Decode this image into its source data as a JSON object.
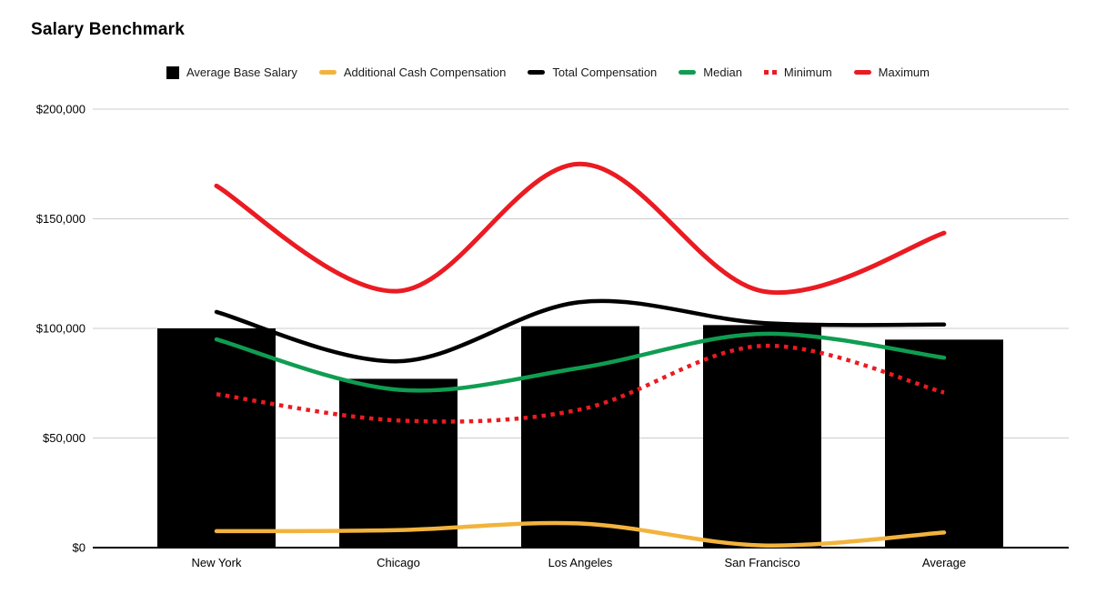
{
  "page": {
    "title": "Salary Benchmark"
  },
  "legend": {
    "items": [
      {
        "label": "Average Base Salary",
        "swatch": "square",
        "color": "#000000"
      },
      {
        "label": "Additional Cash Compensation",
        "swatch": "line",
        "color": "#F2B33D"
      },
      {
        "label": "Total Compensation",
        "swatch": "line",
        "color": "#000000"
      },
      {
        "label": "Median",
        "swatch": "line",
        "color": "#0F9D51"
      },
      {
        "label": "Minimum",
        "swatch": "dots",
        "color": "#EA1B22"
      },
      {
        "label": "Maximum",
        "swatch": "line",
        "color": "#EA1B22"
      }
    ]
  },
  "chart_data": {
    "type": "bar",
    "subtype": "combo bar + smooth lines",
    "title": "Salary Benchmark",
    "categories": [
      "New York",
      "Chicago",
      "Los Angeles",
      "San Francisco",
      "Average"
    ],
    "y_axis": {
      "min": 0,
      "max": 200000,
      "tick_values": [
        0,
        50000,
        100000,
        150000,
        200000
      ],
      "tick_labels": [
        "$0",
        "$50,000",
        "$100,000",
        "$150,000",
        "$200,000"
      ],
      "gridlines": true
    },
    "legend_position": "top",
    "series": [
      {
        "name": "Average Base Salary",
        "type": "bar",
        "style": "solid",
        "color": "#000000",
        "values": [
          100000,
          77000,
          101000,
          101500,
          94875
        ]
      },
      {
        "name": "Additional Cash Compensation",
        "type": "line",
        "style": "solid",
        "color": "#F2B33D",
        "values": [
          7500,
          8000,
          11000,
          1000,
          6875
        ]
      },
      {
        "name": "Total Compensation",
        "type": "line",
        "style": "solid",
        "color": "#000000",
        "values": [
          107500,
          85000,
          112000,
          102500,
          101750
        ]
      },
      {
        "name": "Median",
        "type": "line",
        "style": "solid",
        "color": "#0F9D51",
        "values": [
          95000,
          72000,
          82000,
          97500,
          86625
        ]
      },
      {
        "name": "Minimum",
        "type": "line",
        "style": "dotted",
        "color": "#EA1B22",
        "values": [
          70000,
          58000,
          63000,
          92000,
          70750
        ]
      },
      {
        "name": "Maximum",
        "type": "line",
        "style": "solid",
        "color": "#EA1B22",
        "values": [
          165000,
          117000,
          175000,
          117000,
          143500
        ]
      }
    ],
    "colors": {
      "bar": "#000000",
      "grid": "#cccccc",
      "axis": "#000000",
      "text": "#000000"
    }
  }
}
